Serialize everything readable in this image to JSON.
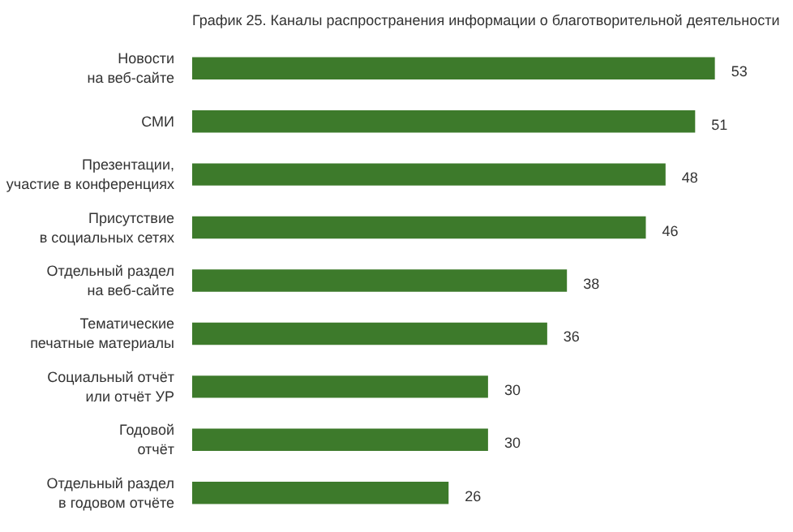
{
  "chart_data": {
    "type": "bar",
    "orientation": "horizontal",
    "title": "График 25. Каналы распространения информации о благотворительной деятельности",
    "categories": [
      "Новости\nна веб-сайте",
      "СМИ",
      "Презентации,\nучастие в конференциях",
      "Присутствие\nв социальных сетях",
      "Отдельный раздел\nна веб-сайте",
      "Тематические\nпечатные материалы",
      "Социальный отчёт\nили отчёт УР",
      "Годовой\nотчёт",
      "Отдельный раздел\nв годовом отчёте"
    ],
    "values": [
      53,
      51,
      48,
      46,
      38,
      36,
      30,
      30,
      26
    ],
    "color": "#3d7a2b",
    "data_labels": true
  }
}
